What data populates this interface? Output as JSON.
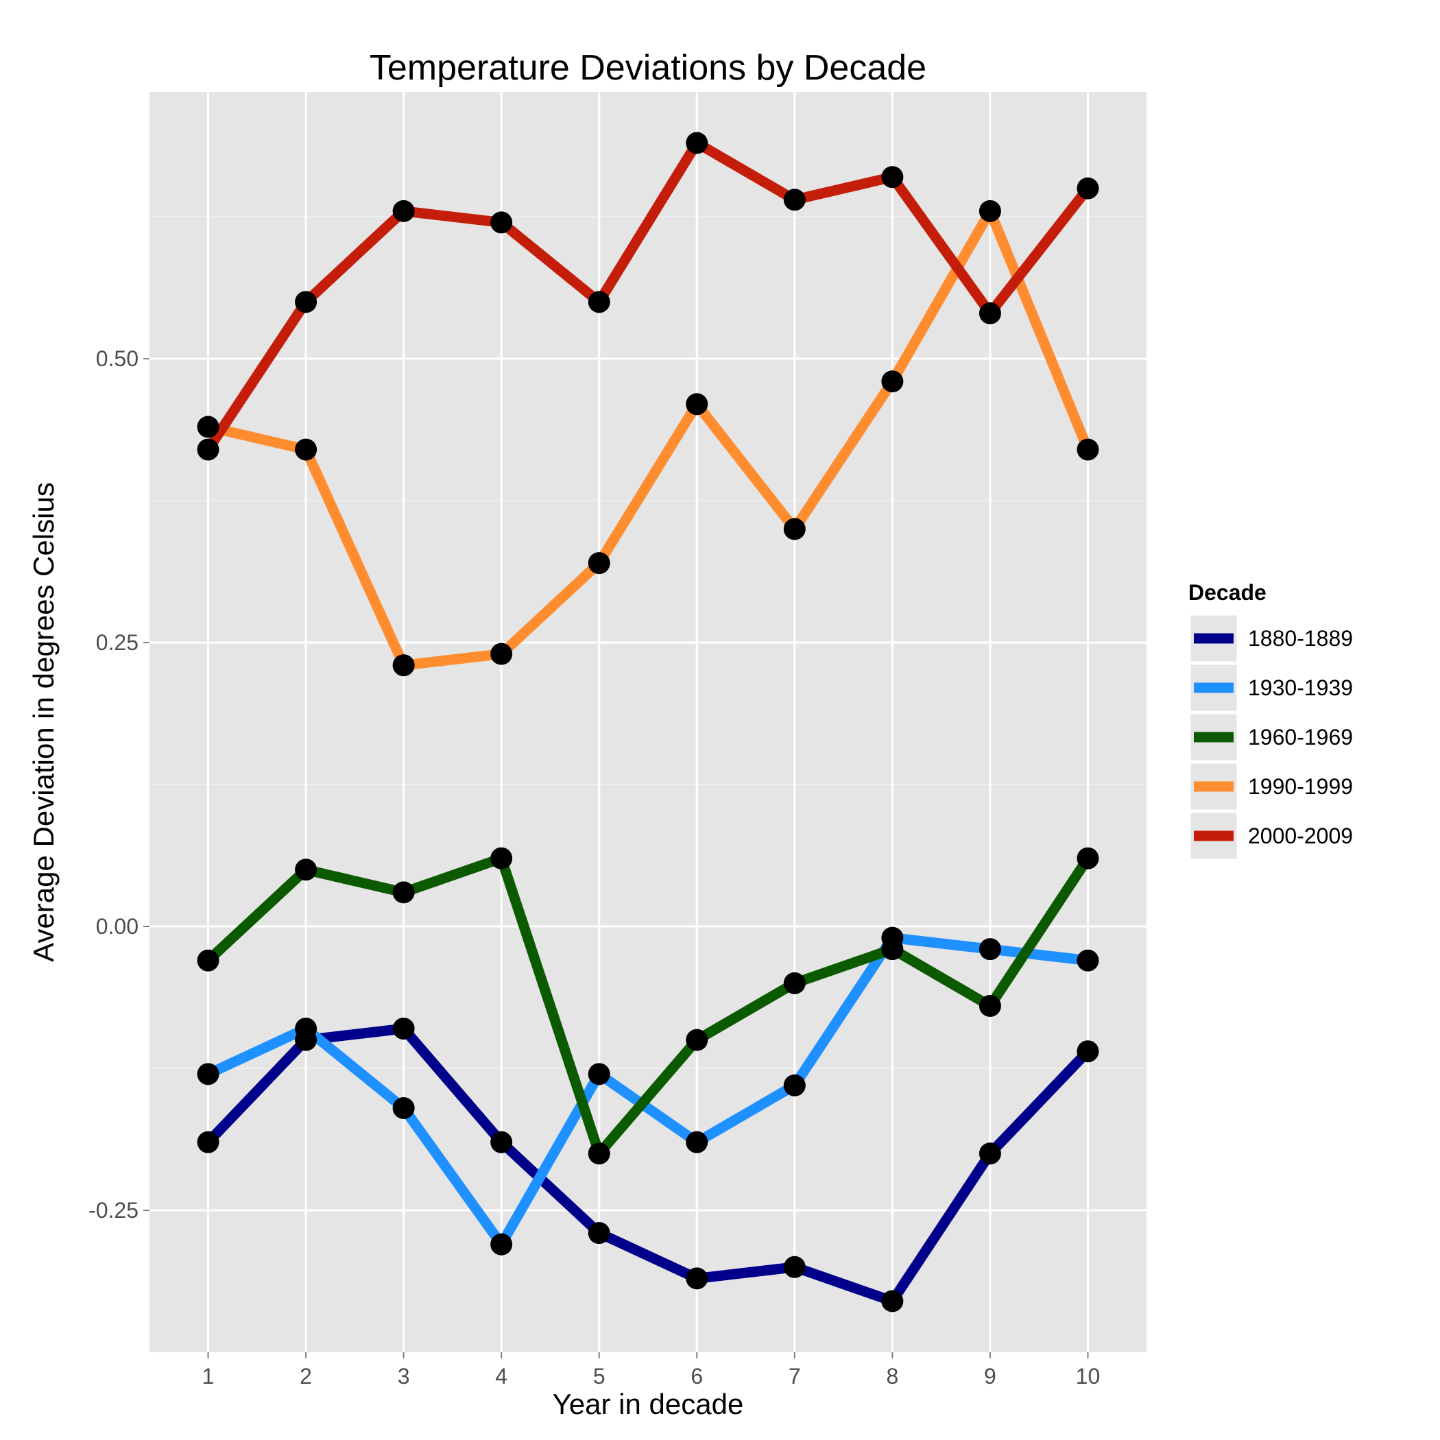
{
  "chart_data": {
    "type": "line",
    "title": "Temperature Deviations by Decade",
    "xlabel": "Year in decade",
    "ylabel": "Average Deviation in degrees Celsius",
    "x": [
      1,
      2,
      3,
      4,
      5,
      6,
      7,
      8,
      9,
      10
    ],
    "x_tick_labels": [
      "1",
      "2",
      "3",
      "4",
      "5",
      "6",
      "7",
      "8",
      "9",
      "10"
    ],
    "xlim": [
      0.4,
      10.6
    ],
    "ylim": [
      -0.375,
      0.735
    ],
    "y_ticks": [
      -0.25,
      0.0,
      0.25,
      0.5
    ],
    "y_tick_labels": [
      "-0.25",
      "0.00",
      "0.25",
      "0.50"
    ],
    "grid": true,
    "legend": {
      "title": "Decade",
      "position": "right"
    },
    "series": [
      {
        "name": "1880-1889",
        "color": "#00008b",
        "values": [
          -0.19,
          -0.1,
          -0.09,
          -0.19,
          -0.27,
          -0.31,
          -0.3,
          -0.33,
          -0.2,
          -0.11
        ]
      },
      {
        "name": "1930-1939",
        "color": "#1e90ff",
        "values": [
          -0.13,
          -0.09,
          -0.16,
          -0.28,
          -0.13,
          -0.19,
          -0.14,
          -0.01,
          -0.02,
          -0.03
        ]
      },
      {
        "name": "1960-1969",
        "color": "#0b5a00",
        "values": [
          -0.03,
          0.05,
          0.03,
          0.06,
          -0.2,
          -0.1,
          -0.05,
          -0.02,
          -0.07,
          0.06
        ]
      },
      {
        "name": "1990-1999",
        "color": "#ff8c2e",
        "values": [
          0.44,
          0.42,
          0.23,
          0.24,
          0.32,
          0.46,
          0.35,
          0.48,
          0.63,
          0.42
        ]
      },
      {
        "name": "2000-2009",
        "color": "#c41e0a",
        "values": [
          0.42,
          0.55,
          0.63,
          0.62,
          0.55,
          0.69,
          0.64,
          0.66,
          0.54,
          0.65
        ]
      }
    ]
  }
}
